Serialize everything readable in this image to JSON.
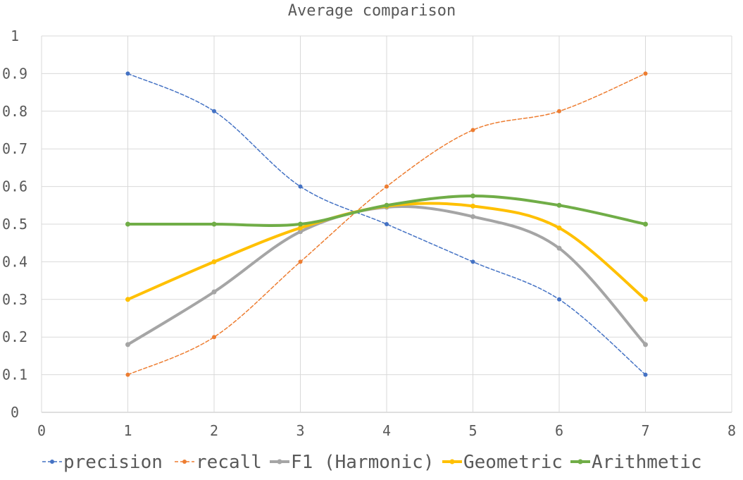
{
  "chart_data": {
    "type": "line",
    "title": "Average comparison",
    "xlim": [
      0,
      8
    ],
    "ylim": [
      0,
      1
    ],
    "x_ticks": [
      "0",
      "1",
      "2",
      "3",
      "4",
      "5",
      "6",
      "7",
      "8"
    ],
    "y_ticks": [
      "0",
      "0.1",
      "0.2",
      "0.3",
      "0.4",
      "0.5",
      "0.6",
      "0.7",
      "0.8",
      "0.9",
      "1"
    ],
    "x": [
      1,
      2,
      3,
      4,
      5,
      6,
      7
    ],
    "grid": true,
    "legend_position": "bottom",
    "series": [
      {
        "name": "precision",
        "values": [
          0.9,
          0.8,
          0.6,
          0.5,
          0.4,
          0.3,
          0.1
        ],
        "color": "#4472C4",
        "dashed": true,
        "width": 1.5,
        "smooth": true
      },
      {
        "name": "recall",
        "values": [
          0.1,
          0.2,
          0.4,
          0.6,
          0.75,
          0.8,
          0.9
        ],
        "color": "#ED7D31",
        "dashed": true,
        "width": 1.5,
        "smooth": true
      },
      {
        "name": "F1 (Harmonic)",
        "values": [
          0.18,
          0.32,
          0.48,
          0.545,
          0.52,
          0.436,
          0.18
        ],
        "color": "#A5A5A5",
        "dashed": false,
        "width": 4,
        "smooth": true
      },
      {
        "name": "Geometric",
        "values": [
          0.3,
          0.4,
          0.49,
          0.548,
          0.548,
          0.49,
          0.3
        ],
        "color": "#FFC000",
        "dashed": false,
        "width": 4,
        "smooth": true
      },
      {
        "name": "Arithmetic",
        "values": [
          0.5,
          0.5,
          0.5,
          0.55,
          0.575,
          0.55,
          0.5
        ],
        "color": "#70AD47",
        "dashed": false,
        "width": 4,
        "smooth": true
      }
    ]
  }
}
